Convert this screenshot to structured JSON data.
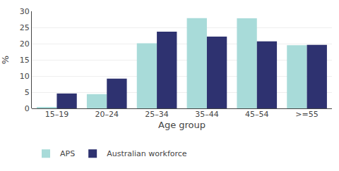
{
  "chart_data": {
    "type": "bar",
    "xlabel": "Age group",
    "ylabel": "%",
    "categories": [
      "15–19",
      "20–24",
      "25–34",
      "35–44",
      "45–54",
      ">=55"
    ],
    "series": [
      {
        "name": "APS",
        "color": "#a8dbd9",
        "values": [
          0.3,
          4.4,
          20.1,
          27.9,
          27.8,
          19.5
        ]
      },
      {
        "name": "Australian workforce",
        "color": "#2e3270",
        "values": [
          4.6,
          9.2,
          23.7,
          22.2,
          20.7,
          19.6
        ]
      }
    ],
    "ylim": [
      0,
      30
    ],
    "yticks": [
      0,
      5,
      10,
      15,
      20,
      25,
      30
    ],
    "grid": true,
    "legend": "bottom"
  }
}
